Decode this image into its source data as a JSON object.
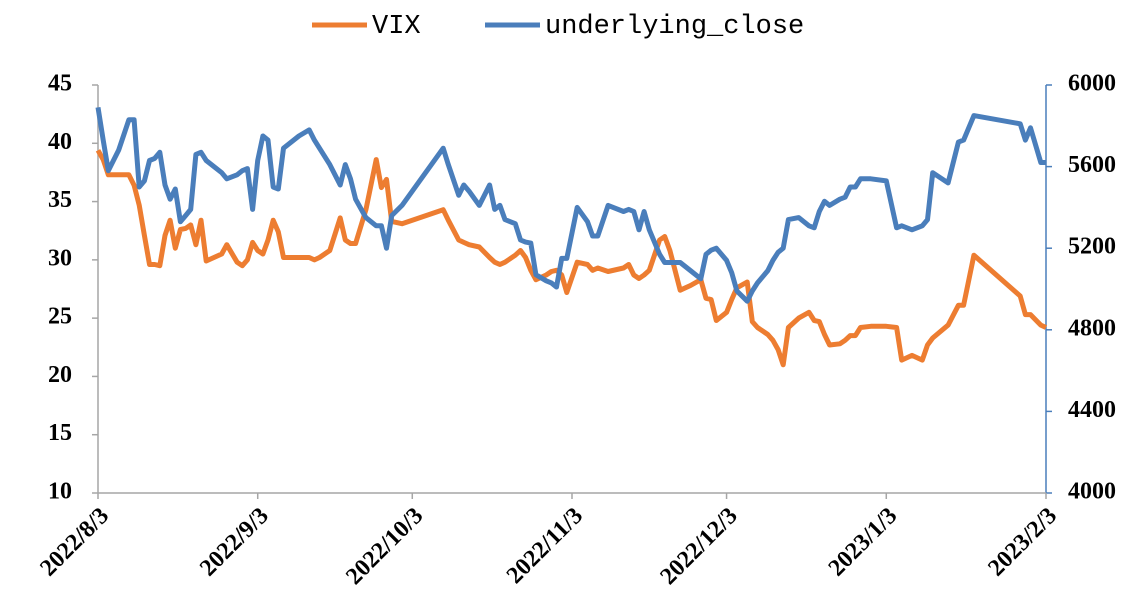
{
  "chart_data": {
    "type": "line",
    "x": [
      "2022-08-03",
      "2022-08-04",
      "2022-08-05",
      "2022-08-07",
      "2022-08-09",
      "2022-08-10",
      "2022-08-11",
      "2022-08-12",
      "2022-08-13",
      "2022-08-14",
      "2022-08-15",
      "2022-08-16",
      "2022-08-17",
      "2022-08-18",
      "2022-08-19",
      "2022-08-20",
      "2022-08-21",
      "2022-08-22",
      "2022-08-23",
      "2022-08-24",
      "2022-08-27",
      "2022-08-28",
      "2022-08-30",
      "2022-08-31",
      "2022-09-01",
      "2022-09-02",
      "2022-09-03",
      "2022-09-04",
      "2022-09-05",
      "2022-09-06",
      "2022-09-07",
      "2022-09-08",
      "2022-09-11",
      "2022-09-13",
      "2022-09-14",
      "2022-09-15",
      "2022-09-17",
      "2022-09-19",
      "2022-09-20",
      "2022-09-21",
      "2022-09-22",
      "2022-09-24",
      "2022-09-26",
      "2022-09-27",
      "2022-09-28",
      "2022-09-29",
      "2022-10-01",
      "2022-10-09",
      "2022-10-10",
      "2022-10-12",
      "2022-10-13",
      "2022-10-14",
      "2022-10-16",
      "2022-10-18",
      "2022-10-19",
      "2022-10-20",
      "2022-10-21",
      "2022-10-23",
      "2022-10-24",
      "2022-10-25",
      "2022-10-26",
      "2022-10-27",
      "2022-10-29",
      "2022-10-30",
      "2022-10-31",
      "2022-11-01",
      "2022-11-02",
      "2022-11-04",
      "2022-11-06",
      "2022-11-07",
      "2022-11-08",
      "2022-11-10",
      "2022-11-13",
      "2022-11-14",
      "2022-11-15",
      "2022-11-16",
      "2022-11-17",
      "2022-11-18",
      "2022-11-20",
      "2022-11-21",
      "2022-11-22",
      "2022-11-24",
      "2022-11-26",
      "2022-11-28",
      "2022-11-29",
      "2022-11-30",
      "2022-12-01",
      "2022-12-03",
      "2022-12-04",
      "2022-12-05",
      "2022-12-07",
      "2022-12-08",
      "2022-12-09",
      "2022-12-11",
      "2022-12-12",
      "2022-12-13",
      "2022-12-14",
      "2022-12-15",
      "2022-12-17",
      "2022-12-19",
      "2022-12-20",
      "2022-12-21",
      "2022-12-22",
      "2022-12-23",
      "2022-12-25",
      "2022-12-26",
      "2022-12-27",
      "2022-12-28",
      "2022-12-29",
      "2022-12-31",
      "2023-01-03",
      "2023-01-05",
      "2023-01-06",
      "2023-01-08",
      "2023-01-10",
      "2023-01-11",
      "2023-01-12",
      "2023-01-15",
      "2023-01-17",
      "2023-01-18",
      "2023-01-20",
      "2023-01-29",
      "2023-01-30",
      "2023-01-31",
      "2023-02-02",
      "2023-02-03"
    ],
    "series": [
      {
        "name": "VIX",
        "color": "#ed7d31",
        "values": [
          39.4,
          38.6,
          37.3,
          37.3,
          37.3,
          36.4,
          34.7,
          32.1,
          29.6,
          29.6,
          29.5,
          32.1,
          33.4,
          31.0,
          32.6,
          32.7,
          33.0,
          31.3,
          33.4,
          29.9,
          30.5,
          31.3,
          29.8,
          29.5,
          30.0,
          31.5,
          30.8,
          30.5,
          31.7,
          33.4,
          32.4,
          30.2,
          30.2,
          30.2,
          30.0,
          30.2,
          30.8,
          33.6,
          31.7,
          31.4,
          31.4,
          34.3,
          38.6,
          36.2,
          36.9,
          33.3,
          33.1,
          34.3,
          33.4,
          31.7,
          31.5,
          31.3,
          31.1,
          30.2,
          29.8,
          29.6,
          29.8,
          30.4,
          30.8,
          30.2,
          29.1,
          28.3,
          28.7,
          29.0,
          29.1,
          28.7,
          27.2,
          29.8,
          29.6,
          29.1,
          29.3,
          29.0,
          29.3,
          29.6,
          28.7,
          28.4,
          28.7,
          29.1,
          31.7,
          32.0,
          30.8,
          27.4,
          27.8,
          28.3,
          26.7,
          26.6,
          24.8,
          25.5,
          26.6,
          27.6,
          28.1,
          24.7,
          24.2,
          23.6,
          23.1,
          22.3,
          21.0,
          24.2,
          25.0,
          25.5,
          24.8,
          24.7,
          23.6,
          22.7,
          22.8,
          23.1,
          23.5,
          23.5,
          24.2,
          24.3,
          24.3,
          24.2,
          21.4,
          21.8,
          21.4,
          22.7,
          23.3,
          24.4,
          26.1,
          26.1,
          30.4,
          26.9,
          25.3,
          25.3,
          24.4,
          24.2
        ]
      },
      {
        "name": "underlying_close",
        "color": "#4a7ebb",
        "axis": "y2",
        "values": [
          5890,
          5730,
          5580,
          5680,
          5830,
          5830,
          5500,
          5530,
          5630,
          5640,
          5670,
          5510,
          5440,
          5490,
          5330,
          5360,
          5390,
          5660,
          5670,
          5630,
          5570,
          5540,
          5560,
          5580,
          5590,
          5390,
          5630,
          5750,
          5730,
          5500,
          5490,
          5690,
          5750,
          5780,
          5730,
          5690,
          5610,
          5510,
          5610,
          5540,
          5440,
          5350,
          5310,
          5310,
          5200,
          5360,
          5410,
          5690,
          5610,
          5460,
          5510,
          5480,
          5410,
          5510,
          5390,
          5410,
          5340,
          5320,
          5240,
          5230,
          5225,
          5070,
          5040,
          5030,
          5010,
          5150,
          5150,
          5400,
          5330,
          5260,
          5260,
          5410,
          5380,
          5390,
          5380,
          5290,
          5380,
          5290,
          5170,
          5130,
          5130,
          5130,
          5090,
          5050,
          5170,
          5190,
          5200,
          5140,
          5080,
          4990,
          4940,
          4990,
          5030,
          5090,
          5140,
          5180,
          5200,
          5340,
          5350,
          5310,
          5300,
          5380,
          5430,
          5410,
          5440,
          5450,
          5500,
          5500,
          5540,
          5540,
          5530,
          5300,
          5310,
          5290,
          5310,
          5340,
          5570,
          5520,
          5720,
          5730,
          5850,
          5810,
          5730,
          5790,
          5620,
          5620
        ]
      }
    ],
    "xlim": [
      "2022-08-03",
      "2023-02-03"
    ],
    "xticks": [
      {
        "value": "2022-08-03",
        "label": "2022/8/3"
      },
      {
        "value": "2022-09-03",
        "label": "2022/9/3"
      },
      {
        "value": "2022-10-03",
        "label": "2022/10/3"
      },
      {
        "value": "2022-11-03",
        "label": "2022/11/3"
      },
      {
        "value": "2022-12-03",
        "label": "2022/12/3"
      },
      {
        "value": "2023-01-03",
        "label": "2023/1/3"
      },
      {
        "value": "2023-02-03",
        "label": "2023/2/3"
      }
    ],
    "ylim": [
      10,
      45
    ],
    "yticks": [
      10,
      15,
      20,
      25,
      30,
      35,
      40,
      45
    ],
    "y2lim": [
      4000,
      6000
    ],
    "y2ticks": [
      4000,
      4400,
      4800,
      5200,
      5600,
      6000
    ],
    "legend": "top"
  }
}
